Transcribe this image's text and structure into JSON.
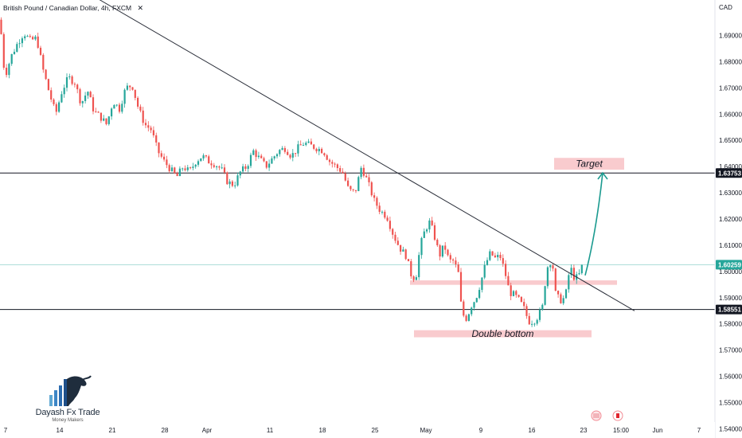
{
  "header": {
    "symbol_title": "British Pound / Canadian Dollar, 4h, FXCM",
    "close_label": "✕",
    "currency": "CAD"
  },
  "colors": {
    "up": "#26a69a",
    "down": "#ef5350",
    "zone_fill": "#f8c2c6",
    "trend_line": "#2a2e39",
    "arrow": "#1a9a8f",
    "badge_current": "#26a69a"
  },
  "chart_data": {
    "type": "candlestick",
    "title": "British Pound / Canadian Dollar, 4h, FXCM",
    "ylabel": "CAD",
    "ylim": [
      1.5365,
      1.7035
    ],
    "y_ticks": [
      1.69,
      1.68,
      1.67,
      1.66,
      1.65,
      1.64,
      1.63,
      1.62,
      1.61,
      1.6,
      1.59,
      1.58,
      1.57,
      1.56,
      1.55,
      1.54
    ],
    "y_tick_labels": [
      "1.69000",
      "1.68000",
      "1.67000",
      "1.66000",
      "1.65000",
      "1.64000",
      "1.63000",
      "1.62000",
      "1.61000",
      "1.60000",
      "1.59000",
      "1.58000",
      "1.57000",
      "1.56000",
      "1.55000",
      "1.54000"
    ],
    "x_tick_labels": [
      "7",
      "14",
      "21",
      "28",
      "Apr",
      "11",
      "18",
      "25",
      "May",
      "9",
      "16",
      "23",
      "15:00",
      "Jun",
      "7"
    ],
    "price_path": [
      [
        0,
        1.696
      ],
      [
        6,
        1.674
      ],
      [
        14,
        1.682
      ],
      [
        22,
        1.687
      ],
      [
        30,
        1.691
      ],
      [
        38,
        1.688
      ],
      [
        46,
        1.689
      ],
      [
        54,
        1.677
      ],
      [
        62,
        1.668
      ],
      [
        70,
        1.66
      ],
      [
        78,
        1.669
      ],
      [
        86,
        1.674
      ],
      [
        94,
        1.672
      ],
      [
        102,
        1.664
      ],
      [
        110,
        1.669
      ],
      [
        118,
        1.661
      ],
      [
        126,
        1.659
      ],
      [
        134,
        1.656
      ],
      [
        142,
        1.665
      ],
      [
        150,
        1.662
      ],
      [
        158,
        1.67
      ],
      [
        166,
        1.671
      ],
      [
        174,
        1.662
      ],
      [
        182,
        1.656
      ],
      [
        190,
        1.654
      ],
      [
        198,
        1.646
      ],
      [
        206,
        1.642
      ],
      [
        214,
        1.639
      ],
      [
        222,
        1.636
      ],
      [
        230,
        1.64
      ],
      [
        238,
        1.638
      ],
      [
        246,
        1.642
      ],
      [
        254,
        1.644
      ],
      [
        262,
        1.642
      ],
      [
        270,
        1.641
      ],
      [
        278,
        1.639
      ],
      [
        286,
        1.634
      ],
      [
        294,
        1.633
      ],
      [
        302,
        1.638
      ],
      [
        310,
        1.64
      ],
      [
        318,
        1.646
      ],
      [
        326,
        1.643
      ],
      [
        334,
        1.64
      ],
      [
        342,
        1.643
      ],
      [
        350,
        1.646
      ],
      [
        358,
        1.647
      ],
      [
        366,
        1.644
      ],
      [
        374,
        1.647
      ],
      [
        382,
        1.649
      ],
      [
        390,
        1.648
      ],
      [
        398,
        1.647
      ],
      [
        406,
        1.646
      ],
      [
        414,
        1.642
      ],
      [
        422,
        1.64
      ],
      [
        430,
        1.638
      ],
      [
        438,
        1.631
      ],
      [
        446,
        1.63
      ],
      [
        454,
        1.64
      ],
      [
        462,
        1.634
      ],
      [
        470,
        1.627
      ],
      [
        478,
        1.623
      ],
      [
        486,
        1.621
      ],
      [
        494,
        1.614
      ],
      [
        502,
        1.609
      ],
      [
        510,
        1.606
      ],
      [
        516,
        1.599
      ],
      [
        522,
        1.597
      ],
      [
        528,
        1.61
      ],
      [
        534,
        1.616
      ],
      [
        540,
        1.619
      ],
      [
        546,
        1.613
      ],
      [
        552,
        1.606
      ],
      [
        558,
        1.61
      ],
      [
        564,
        1.604
      ],
      [
        570,
        1.604
      ],
      [
        576,
        1.599
      ],
      [
        580,
        1.584
      ],
      [
        586,
        1.582
      ],
      [
        592,
        1.587
      ],
      [
        598,
        1.59
      ],
      [
        604,
        1.596
      ],
      [
        610,
        1.603
      ],
      [
        616,
        1.607
      ],
      [
        622,
        1.605
      ],
      [
        628,
        1.606
      ],
      [
        634,
        1.6
      ],
      [
        640,
        1.592
      ],
      [
        646,
        1.591
      ],
      [
        652,
        1.589
      ],
      [
        658,
        1.586
      ],
      [
        664,
        1.581
      ],
      [
        670,
        1.581
      ],
      [
        676,
        1.583
      ],
      [
        682,
        1.587
      ],
      [
        686,
        1.6
      ],
      [
        690,
        1.604
      ],
      [
        694,
        1.603
      ],
      [
        698,
        1.591
      ],
      [
        704,
        1.589
      ],
      [
        710,
        1.59
      ],
      [
        716,
        1.602
      ],
      [
        722,
        1.597
      ],
      [
        728,
        1.599
      ],
      [
        732,
        1.603
      ]
    ],
    "trend_line": [
      [
        120,
        1.7045
      ],
      [
        797,
        1.585
      ]
    ],
    "horizontal_levels": [
      {
        "price": 1.63753,
        "label": "1.63753"
      },
      {
        "price": 1.58551,
        "label": "1.58551"
      }
    ],
    "current_price": {
      "price": 1.60259,
      "label": "1.60259"
    },
    "zones": [
      {
        "name": "target-zone",
        "x": [
          696,
          784
        ],
        "y": [
          1.6433,
          1.6388
        ],
        "label": "Target"
      },
      {
        "name": "resistance-zone",
        "x": [
          515,
          775
        ],
        "y": [
          1.5966,
          1.5949
        ],
        "label": ""
      },
      {
        "name": "double-bottom-zone",
        "x": [
          520,
          743
        ],
        "y": [
          1.5776,
          1.5749
        ],
        "label": "Double bottom"
      },
      {
        "name": "bottom-band",
        "x": [
          0,
          898
        ],
        "y": [
          1.5418,
          1.5386
        ],
        "label": ""
      }
    ],
    "arrow": {
      "from": [
        735,
        1.5985
      ],
      "to": [
        757,
        1.6376
      ]
    }
  },
  "branding": {
    "name": "Dayash Fx Trade",
    "tagline": "Money Makers"
  }
}
